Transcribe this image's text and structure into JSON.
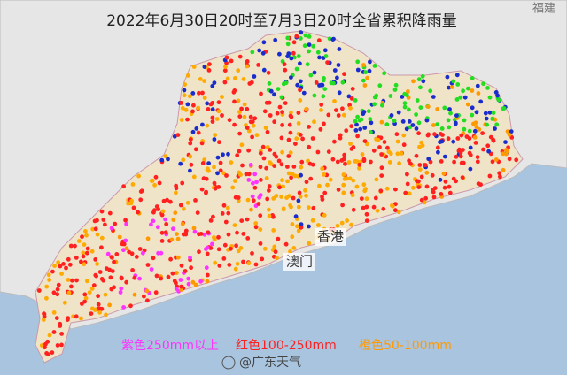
{
  "title": "2022年6月30日20时至7月3日20时全省累积降雨量",
  "places": {
    "hongkong": "香港",
    "macau": "澳门",
    "fujian": "福建"
  },
  "legend": [
    "紫色250mm以上",
    "红色100-250mm",
    "橙色50-100mm"
  ],
  "watermark": "@广东天气"
}
